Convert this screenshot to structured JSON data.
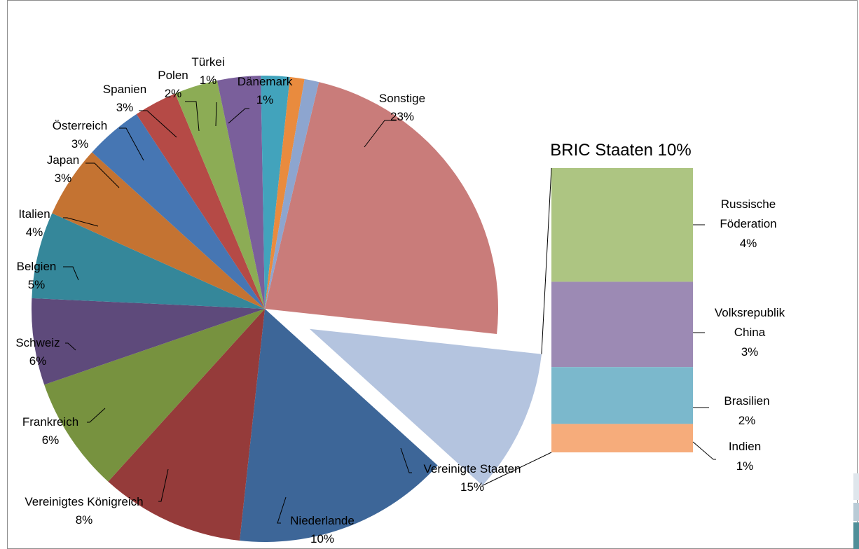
{
  "chart_data": {
    "type": "bar-of-pie",
    "pie": {
      "slices": [
        {
          "name": "Sonstige",
          "value": 23,
          "label": "23%",
          "color": "#C97C7A"
        },
        {
          "name": "BRIC Staaten",
          "value": 10,
          "label": "10%",
          "color": "#B4C4DF",
          "exploded": true
        },
        {
          "name": "Vereinigte Staaten",
          "value": 15,
          "label": "15%",
          "color": "#3D6698"
        },
        {
          "name": "Niederlande",
          "value": 10,
          "label": "10%",
          "color": "#953B3A"
        },
        {
          "name": "Vereinigtes Königreich",
          "value": 8,
          "label": "8%",
          "color": "#77923F"
        },
        {
          "name": "Frankreich",
          "value": 6,
          "label": "6%",
          "color": "#5E4A7B"
        },
        {
          "name": "Schweiz",
          "value": 6,
          "label": "6%",
          "color": "#35879A"
        },
        {
          "name": "Belgien",
          "value": 5,
          "label": "5%",
          "color": "#C47332"
        },
        {
          "name": "Italien",
          "value": 4,
          "label": "4%",
          "color": "#4676B3"
        },
        {
          "name": "Japan",
          "value": 3,
          "label": "3%",
          "color": "#B54A46"
        },
        {
          "name": "Österreich",
          "value": 3,
          "label": "3%",
          "color": "#8CAC55"
        },
        {
          "name": "Spanien",
          "value": 3,
          "label": "3%",
          "color": "#7A5F9B"
        },
        {
          "name": "Polen",
          "value": 2,
          "label": "2%",
          "color": "#42A3BC"
        },
        {
          "name": "Türkei",
          "value": 1,
          "label": "1%",
          "color": "#E98B3E"
        },
        {
          "name": "Dänemark",
          "value": 1,
          "label": "1%",
          "color": "#8DA5CF"
        }
      ]
    },
    "bar": {
      "title": "BRIC Staaten 10%",
      "segments": [
        {
          "name": "Russische Föderation",
          "lines": [
            "Russische",
            "Föderation"
          ],
          "value": 4,
          "label": "4%",
          "color": "#ADC582"
        },
        {
          "name": "Volksrepublik China",
          "lines": [
            "Volksrepublik",
            "China"
          ],
          "value": 3,
          "label": "3%",
          "color": "#9C8AB4"
        },
        {
          "name": "Brasilien",
          "lines": [
            "Brasilien"
          ],
          "value": 2,
          "label": "2%",
          "color": "#7BB8CC"
        },
        {
          "name": "Indien",
          "lines": [
            "Indien"
          ],
          "value": 1,
          "label": "1%",
          "color": "#F6AC7B"
        }
      ]
    }
  }
}
